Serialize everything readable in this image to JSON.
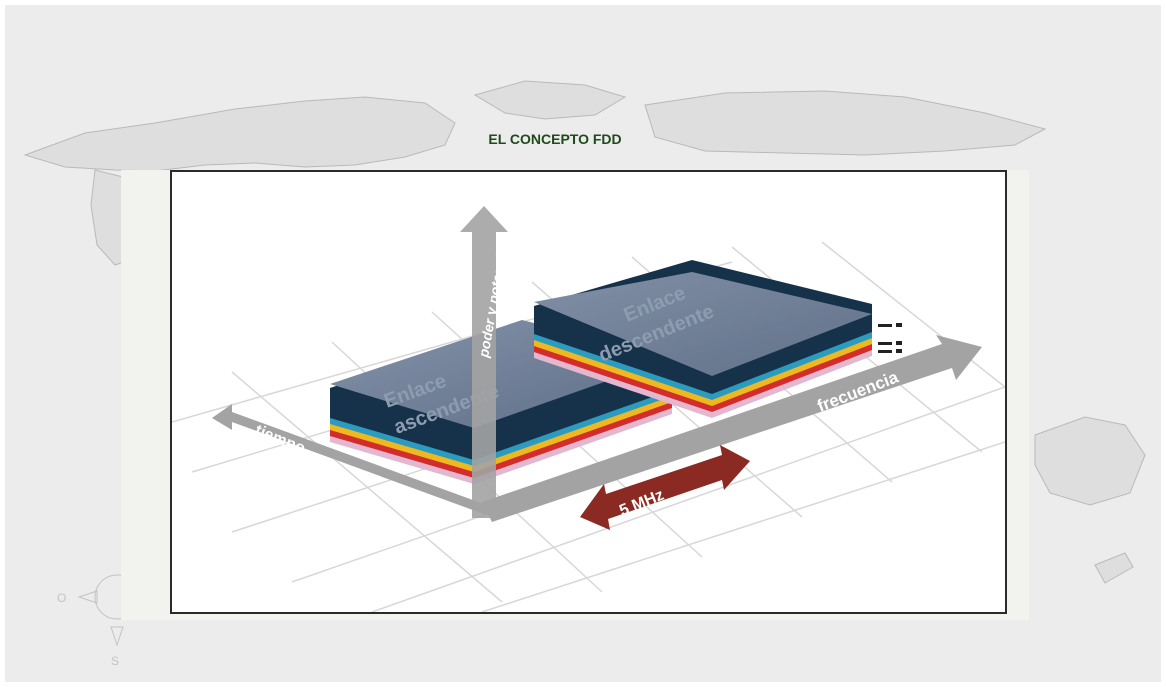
{
  "slide": {
    "title": "EL CONCEPTO FDD"
  },
  "diagram": {
    "axis_vertical_label": "poder y potencia",
    "axis_left_label": "tiempo",
    "axis_right_label": "frecuencia",
    "block_uplink_label_line1": "Enlace",
    "block_uplink_label_line2": "ascendente",
    "block_downlink_label_line1": "Enlace",
    "block_downlink_label_line2": "descendente",
    "bandwidth_label": "5 MHz",
    "layer_colors": [
      "#e3b7cf",
      "#d22c2c",
      "#f0b81f",
      "#2b9cbf",
      "#16324a"
    ],
    "block_top_color": "#6f7f96",
    "bandwidth_arrow_color": "#8b2a22",
    "axis_color": "#9a9a9a"
  },
  "compass": {
    "west_letter": "O",
    "south_letter": "S"
  }
}
